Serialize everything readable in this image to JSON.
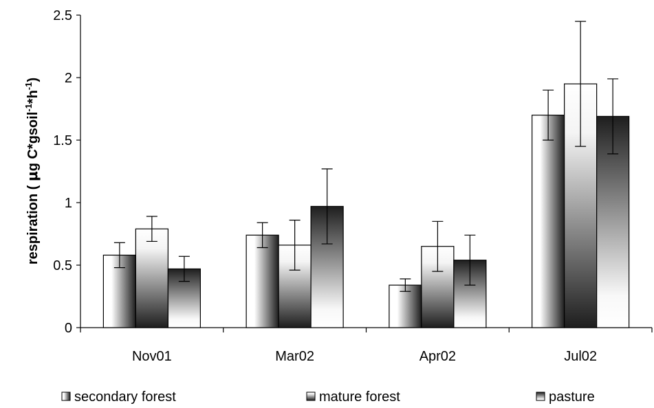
{
  "chart_data": {
    "type": "bar",
    "title": "",
    "xlabel": "",
    "ylabel": {
      "prefix": "respiration ( ",
      "mu": "μ",
      "unit1": "g C*gsoil",
      "exp1": "-1",
      "unit2": "*h",
      "exp2": "-1",
      "suffix": ")"
    },
    "ylim": [
      0,
      2.5
    ],
    "yticks": [
      "0",
      "0.5",
      "1",
      "1.5",
      "2",
      "2.5"
    ],
    "grid": false,
    "legend_position": "bottom",
    "categories": [
      "Nov01",
      "Mar02",
      "Apr02",
      "Jul02"
    ],
    "series": [
      {
        "name": "secondary forest",
        "values": [
          0.58,
          0.74,
          0.34,
          1.7
        ],
        "errors": [
          0.1,
          0.1,
          0.05,
          0.2
        ],
        "gradient": [
          "#ffffff",
          "#1e1e1e"
        ]
      },
      {
        "name": "mature forest",
        "values": [
          0.79,
          0.66,
          0.65,
          1.95
        ],
        "errors": [
          0.1,
          0.2,
          0.2,
          0.5
        ],
        "gradient": [
          "#ffffff",
          "#1e1e1e"
        ]
      },
      {
        "name": "pasture",
        "values": [
          0.47,
          0.97,
          0.54,
          1.69
        ],
        "errors": [
          0.1,
          0.3,
          0.2,
          0.3
        ],
        "gradient": [
          "#ffffff",
          "#1e1e1e"
        ]
      }
    ]
  }
}
